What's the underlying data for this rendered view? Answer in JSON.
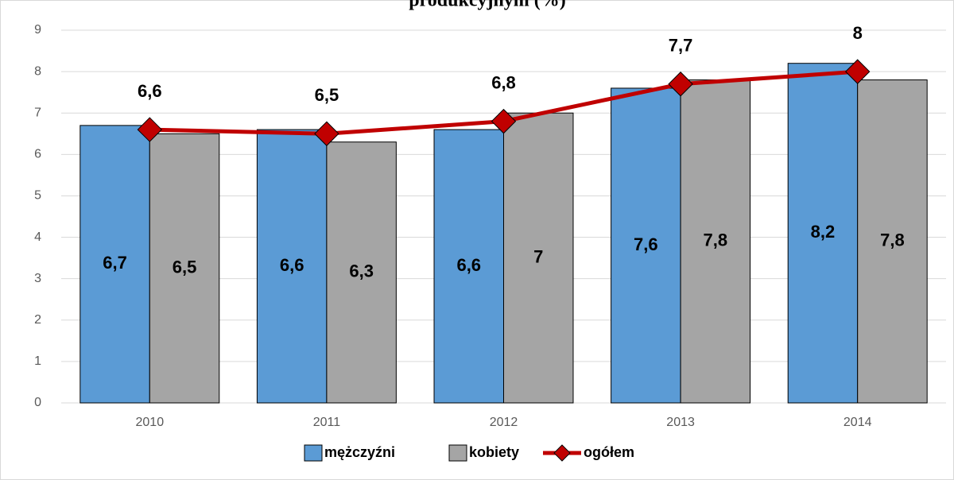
{
  "chart_data": {
    "type": "bar",
    "title": "produkcyjnym (%)",
    "categories": [
      "2010",
      "2011",
      "2012",
      "2013",
      "2014"
    ],
    "series": [
      {
        "name": "mężczyźni",
        "color": "#5b9bd5",
        "values": [
          6.7,
          6.6,
          6.6,
          7.6,
          8.2
        ],
        "value_labels": [
          "6,7",
          "6,6",
          "6,6",
          "7,6",
          "8,2"
        ]
      },
      {
        "name": "kobiety",
        "color": "#a5a5a5",
        "values": [
          6.5,
          6.3,
          7,
          7.8,
          7.8
        ],
        "value_labels": [
          "6,5",
          "6,3",
          "7",
          "7,8",
          "7,8"
        ]
      },
      {
        "name": "ogółem",
        "color": "#c00000",
        "type": "line",
        "values": [
          6.6,
          6.5,
          6.8,
          7.7,
          8
        ],
        "value_labels": [
          "6,6",
          "6,5",
          "6,8",
          "7,7",
          "8"
        ]
      }
    ],
    "ylim": [
      0,
      9
    ],
    "yticks": [
      0,
      1,
      2,
      3,
      4,
      5,
      6,
      7,
      8,
      9
    ],
    "grid": true,
    "legend": "bottom"
  }
}
